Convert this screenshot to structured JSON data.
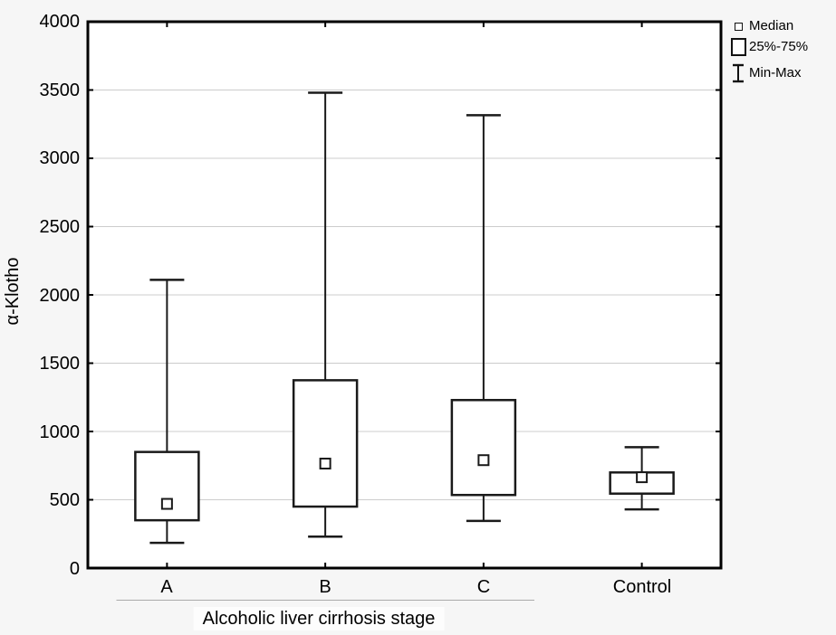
{
  "figure": {
    "background": "#f6f6f6",
    "plot_background": "#ffffff",
    "axis_color": "#000000",
    "grid_color": "#cccccc",
    "box_stroke_color": "#1a1a1a",
    "group_line_color": "#aaaaaa"
  },
  "chart_data": {
    "type": "boxplot",
    "title": "",
    "xlabel": "Alcoholic liver cirrhosis stage",
    "ylabel": "α-Klotho",
    "ylim": [
      0,
      4000
    ],
    "ytick_step": 500,
    "yticks": [
      "0",
      "500",
      "1000",
      "1500",
      "2000",
      "2500",
      "3000",
      "3500",
      "4000"
    ],
    "grid": "horizontal",
    "legend_position": "top-right",
    "categories": [
      "A",
      "B",
      "C",
      "Control"
    ],
    "xlabel_group_categories": [
      "A",
      "B",
      "C"
    ],
    "series": [
      {
        "category": "A",
        "min": 185,
        "q1": 350,
        "median": 470,
        "q3": 850,
        "max": 2110
      },
      {
        "category": "B",
        "min": 230,
        "q1": 450,
        "median": 765,
        "q3": 1375,
        "max": 3480
      },
      {
        "category": "C",
        "min": 345,
        "q1": 535,
        "median": 790,
        "q3": 1230,
        "max": 3315
      },
      {
        "category": "Control",
        "min": 430,
        "q1": 545,
        "median": 665,
        "q3": 700,
        "max": 885
      }
    ],
    "legend": {
      "items": [
        {
          "symbol": "median-square-icon",
          "label": "Median"
        },
        {
          "symbol": "box-icon",
          "label": "25%-75%"
        },
        {
          "symbol": "whisker-icon",
          "label": "Min-Max"
        }
      ]
    }
  }
}
